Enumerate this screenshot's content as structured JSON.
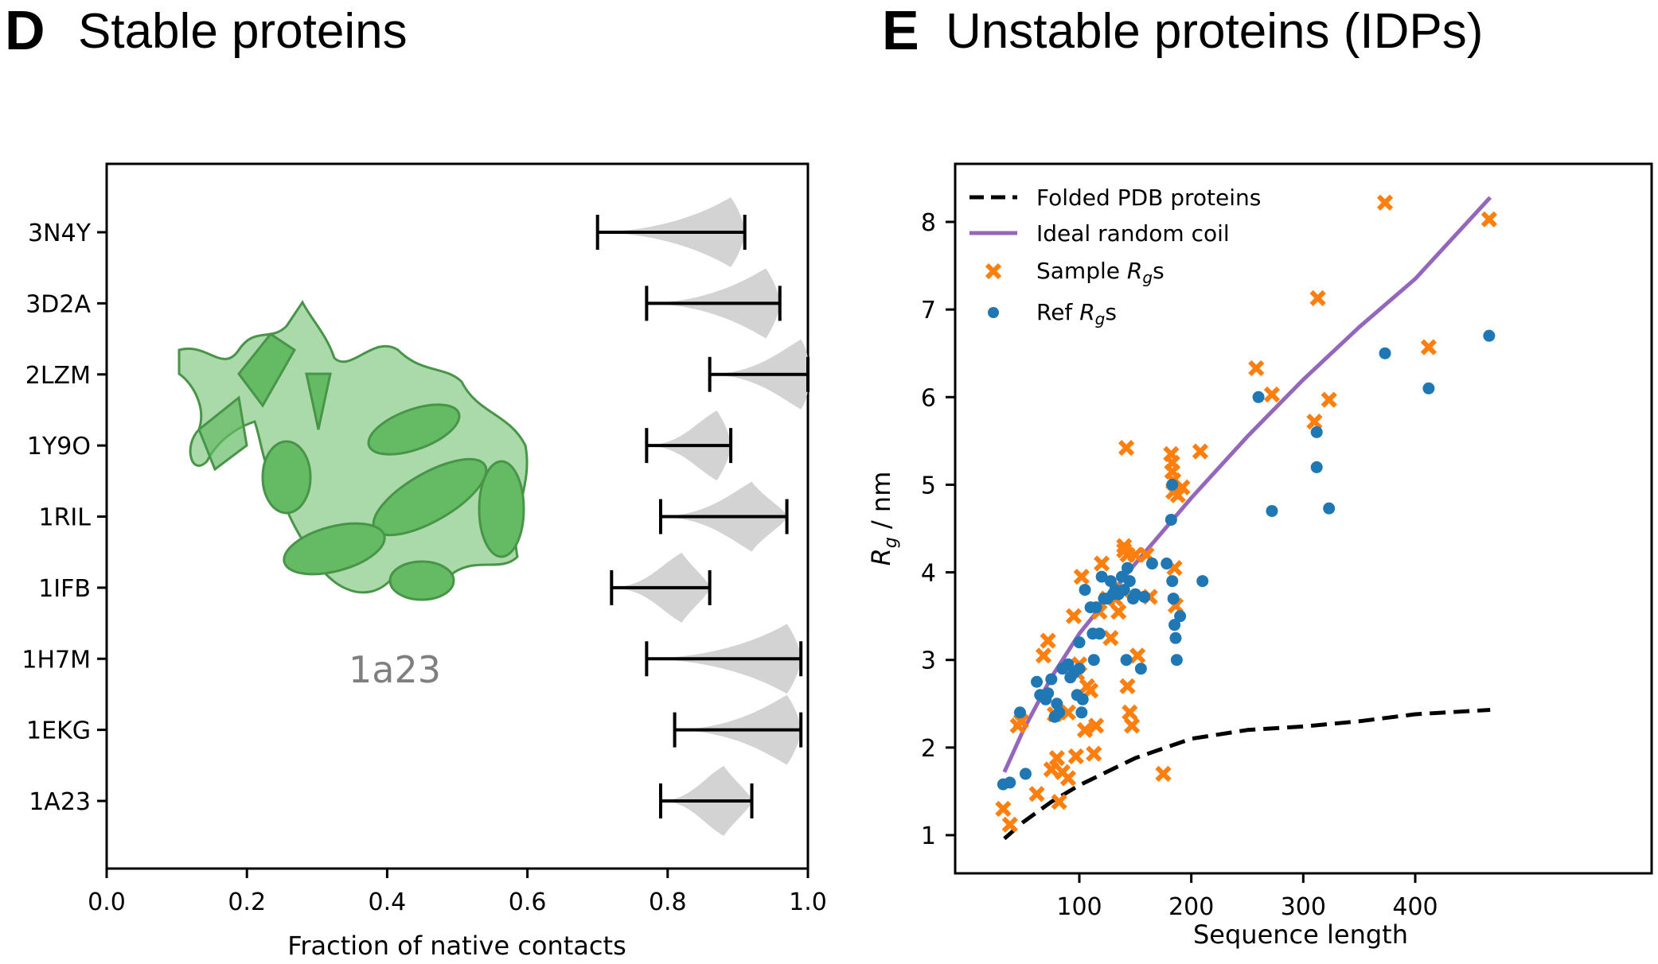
{
  "panels": {
    "d": {
      "letter": "D",
      "title": "Stable proteins"
    },
    "e": {
      "letter": "E",
      "title": "Unstable proteins (IDPs)"
    }
  },
  "structure_image": {
    "label": "1a23",
    "color": "#5cb85c",
    "description": "cartoon rendering of protein 1a23"
  },
  "chart_data": [
    {
      "type": "violin",
      "title": "Stable proteins",
      "xlabel": "Fraction of native contacts",
      "ylabel": "",
      "xlim": [
        0.0,
        1.0
      ],
      "xticks": [
        "0.0",
        "0.2",
        "0.4",
        "0.6",
        "0.8",
        "1.0"
      ],
      "grid": false,
      "violin_color": "#d3d3d3",
      "categories": [
        "3N4Y",
        "3D2A",
        "2LZM",
        "1Y9O",
        "1RIL",
        "1IFB",
        "1H7M",
        "1EKG",
        "1A23"
      ],
      "series": [
        {
          "name": "3N4Y",
          "min": 0.7,
          "max": 0.91,
          "peak": 0.89
        },
        {
          "name": "3D2A",
          "min": 0.77,
          "max": 0.96,
          "peak": 0.94
        },
        {
          "name": "2LZM",
          "min": 0.86,
          "max": 1.0,
          "peak": 0.99
        },
        {
          "name": "1Y9O",
          "min": 0.77,
          "max": 0.89,
          "peak": 0.87
        },
        {
          "name": "1RIL",
          "min": 0.79,
          "max": 0.97,
          "peak": 0.92
        },
        {
          "name": "1IFB",
          "min": 0.72,
          "max": 0.86,
          "peak": 0.82
        },
        {
          "name": "1H7M",
          "min": 0.77,
          "max": 0.99,
          "peak": 0.97
        },
        {
          "name": "1EKG",
          "min": 0.81,
          "max": 0.99,
          "peak": 0.97
        },
        {
          "name": "1A23",
          "min": 0.79,
          "max": 0.92,
          "peak": 0.88
        }
      ]
    },
    {
      "type": "scatter",
      "title": "Unstable proteins (IDPs)",
      "xlabel": "Sequence length",
      "ylabel": "R_g / nm",
      "xlim": [
        20,
        475
      ],
      "ylim": [
        0.6,
        8.6
      ],
      "xticks": [
        "100",
        "200",
        "300",
        "400"
      ],
      "yticks": [
        "1",
        "2",
        "3",
        "4",
        "5",
        "6",
        "7",
        "8"
      ],
      "grid": false,
      "legend_position": "top-left",
      "legend": [
        "Folded PDB proteins",
        "Ideal random coil",
        "Sample Rgs",
        "Ref Rgs"
      ],
      "lines": [
        {
          "name": "Folded PDB proteins",
          "color": "#000000",
          "style": "dashed",
          "x": [
            33,
            50,
            75,
            100,
            150,
            200,
            250,
            300,
            350,
            400,
            467
          ],
          "y": [
            0.96,
            1.15,
            1.38,
            1.57,
            1.88,
            2.1,
            2.2,
            2.24,
            2.3,
            2.38,
            2.43
          ]
        },
        {
          "name": "Ideal random coil",
          "color": "#9467bd",
          "style": "solid",
          "x": [
            33,
            50,
            75,
            100,
            150,
            200,
            250,
            300,
            350,
            400,
            467
          ],
          "y": [
            1.72,
            2.2,
            2.8,
            3.3,
            4.1,
            4.85,
            5.55,
            6.2,
            6.8,
            7.35,
            8.28
          ]
        }
      ],
      "series": [
        {
          "name": "Sample Rgs",
          "marker": "x",
          "color": "#ff7f0e",
          "points": [
            [
              32,
              1.3
            ],
            [
              38,
              1.12
            ],
            [
              45,
              2.25
            ],
            [
              48,
              2.3
            ],
            [
              62,
              1.47
            ],
            [
              68,
              3.05
            ],
            [
              72,
              3.22
            ],
            [
              78,
              2.38
            ],
            [
              75,
              1.75
            ],
            [
              80,
              1.88
            ],
            [
              82,
              1.38
            ],
            [
              85,
              1.72
            ],
            [
              90,
              1.65
            ],
            [
              90,
              2.4
            ],
            [
              95,
              3.5
            ],
            [
              97,
              1.9
            ],
            [
              98,
              2.85
            ],
            [
              100,
              2.95
            ],
            [
              102,
              3.95
            ],
            [
              105,
              2.2
            ],
            [
              107,
              2.7
            ],
            [
              110,
              2.65
            ],
            [
              113,
              1.93
            ],
            [
              115,
              2.25
            ],
            [
              118,
              3.55
            ],
            [
              120,
              4.1
            ],
            [
              125,
              3.7
            ],
            [
              128,
              3.25
            ],
            [
              132,
              3.7
            ],
            [
              135,
              3.55
            ],
            [
              138,
              3.8
            ],
            [
              140,
              4.25
            ],
            [
              140,
              4.3
            ],
            [
              143,
              2.7
            ],
            [
              142,
              5.42
            ],
            [
              143,
              4.2
            ],
            [
              145,
              2.4
            ],
            [
              147,
              2.25
            ],
            [
              150,
              4.2
            ],
            [
              152,
              3.05
            ],
            [
              160,
              4.2
            ],
            [
              163,
              3.72
            ],
            [
              175,
              1.7
            ],
            [
              182,
              5.35
            ],
            [
              183,
              5.25
            ],
            [
              183,
              5.15
            ],
            [
              184,
              5.05
            ],
            [
              184,
              4.92
            ],
            [
              185,
              4.05
            ],
            [
              186,
              3.62
            ],
            [
              188,
              4.88
            ],
            [
              192,
              4.97
            ],
            [
              208,
              5.38
            ],
            [
              258,
              6.33
            ],
            [
              272,
              6.03
            ],
            [
              310,
              5.72
            ],
            [
              313,
              7.13
            ],
            [
              323,
              5.97
            ],
            [
              373,
              8.22
            ],
            [
              412,
              6.57
            ],
            [
              466,
              8.03
            ]
          ]
        },
        {
          "name": "Ref Rgs",
          "marker": "o",
          "color": "#1f77b4",
          "points": [
            [
              32,
              1.58
            ],
            [
              38,
              1.6
            ],
            [
              47,
              2.4
            ],
            [
              52,
              1.7
            ],
            [
              62,
              2.75
            ],
            [
              65,
              2.6
            ],
            [
              70,
              2.55
            ],
            [
              72,
              2.62
            ],
            [
              75,
              2.78
            ],
            [
              78,
              2.35
            ],
            [
              80,
              2.5
            ],
            [
              82,
              2.4
            ],
            [
              85,
              2.9
            ],
            [
              90,
              2.95
            ],
            [
              92,
              2.8
            ],
            [
              95,
              2.85
            ],
            [
              98,
              2.6
            ],
            [
              100,
              3.2
            ],
            [
              100,
              2.9
            ],
            [
              102,
              2.4
            ],
            [
              103,
              2.55
            ],
            [
              105,
              3.8
            ],
            [
              110,
              3.6
            ],
            [
              112,
              3.3
            ],
            [
              113,
              3.0
            ],
            [
              115,
              3.6
            ],
            [
              118,
              3.3
            ],
            [
              120,
              3.95
            ],
            [
              122,
              3.7
            ],
            [
              125,
              3.7
            ],
            [
              128,
              3.9
            ],
            [
              130,
              3.75
            ],
            [
              132,
              3.8
            ],
            [
              135,
              3.75
            ],
            [
              138,
              3.95
            ],
            [
              140,
              3.8
            ],
            [
              142,
              3.0
            ],
            [
              143,
              4.05
            ],
            [
              145,
              3.9
            ],
            [
              148,
              3.7
            ],
            [
              150,
              3.75
            ],
            [
              155,
              2.9
            ],
            [
              158,
              3.72
            ],
            [
              165,
              4.1
            ],
            [
              178,
              4.1
            ],
            [
              182,
              4.6
            ],
            [
              183,
              5.0
            ],
            [
              183,
              3.9
            ],
            [
              184,
              3.7
            ],
            [
              185,
              3.4
            ],
            [
              186,
              3.25
            ],
            [
              187,
              3.0
            ],
            [
              190,
              3.5
            ],
            [
              210,
              3.9
            ],
            [
              260,
              6.0
            ],
            [
              272,
              4.7
            ],
            [
              312,
              5.6
            ],
            [
              312,
              5.2
            ],
            [
              323,
              4.73
            ],
            [
              373,
              6.5
            ],
            [
              412,
              6.1
            ],
            [
              466,
              6.7
            ]
          ]
        }
      ]
    }
  ]
}
